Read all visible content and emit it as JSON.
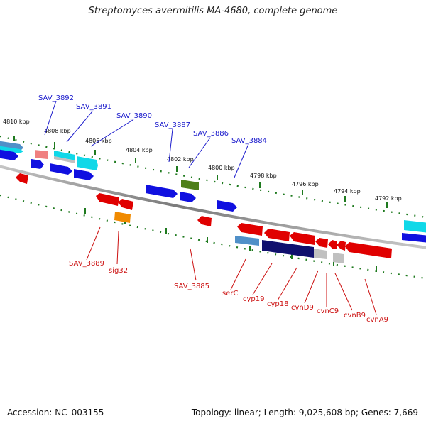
{
  "title": "Streptomyces avermitilis MA-4680, complete genome",
  "accession": "Accession: NC_003155",
  "topology": "Topology: linear; Length: 9,025,608 bp; Genes: 7,669",
  "kbp_labels": [
    "4810 kbp",
    "4808 kbp",
    "4806 kbp",
    "4804 kbp",
    "4802 kbp",
    "4800 kbp",
    "4798 kbp",
    "4796 kbp",
    "4794 kbp",
    "4792 kbp"
  ],
  "top_gene_labels": [
    "SAV_3892",
    "SAV_3891",
    "SAV_3890",
    "SAV_3887",
    "SAV_3886",
    "SAV_3884"
  ],
  "bottom_gene_labels": [
    "SAV_3889",
    "sig32",
    "SAV_3885",
    "serC",
    "cyp19",
    "cyp18",
    "cvnD9",
    "cvnC9",
    "cvnB9",
    "cvnA9"
  ],
  "colors": {
    "forward_label": "#1a1acc",
    "reverse_label": "#cc1111",
    "tick": "#1f7a1f",
    "backbone": "#808080",
    "gene_blue": "#1010e0",
    "gene_red": "#e00000",
    "gene_cyan": "#10d8e8",
    "gene_navy": "#10106e",
    "gene_olive": "#4f7f1a",
    "gene_orange": "#f08a00",
    "gene_grey": "#c0c0c0",
    "gene_pink": "#f08080",
    "gene_steel": "#5090c8"
  }
}
